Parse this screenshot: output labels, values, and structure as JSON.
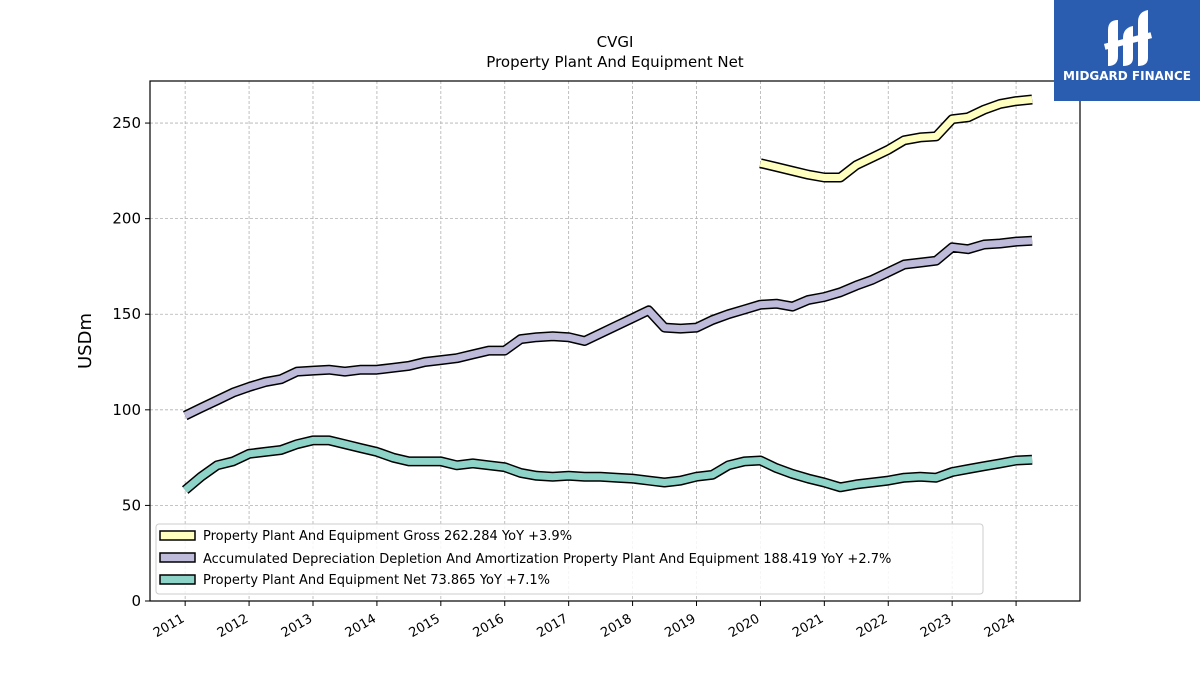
{
  "chart_data": {
    "type": "line",
    "title": "CVGI",
    "subtitle": "Property Plant And Equipment Net",
    "ylabel": "USDm",
    "xlabel": "",
    "ylim": [
      0,
      272
    ],
    "xlim": [
      2010.45,
      2025.0
    ],
    "yticks": [
      0,
      50,
      100,
      150,
      200,
      250
    ],
    "xticks": [
      "2011",
      "2012",
      "2013",
      "2014",
      "2015",
      "2016",
      "2017",
      "2018",
      "2019",
      "2020",
      "2021",
      "2022",
      "2023",
      "2024"
    ],
    "grid": true,
    "legend_position": "lower-left",
    "series": [
      {
        "name": "Property Plant And Equipment Gross",
        "legend": "Property Plant And Equipment Gross  262.284 YoY +3.9%",
        "color": "#ffffbf",
        "x": [
          2020.0,
          2020.25,
          2020.5,
          2020.75,
          2021.0,
          2021.25,
          2021.5,
          2021.75,
          2022.0,
          2022.25,
          2022.5,
          2022.75,
          2023.0,
          2023.25,
          2023.5,
          2023.75,
          2024.0,
          2024.25
        ],
        "y": [
          229,
          227,
          225,
          223,
          221.5,
          221.5,
          228,
          232,
          236,
          241,
          242.5,
          243,
          252,
          253,
          257,
          260,
          261.5,
          262.3
        ]
      },
      {
        "name": "Accumulated Depreciation Depletion And Amortization Property Plant And Equipment",
        "legend": "Accumulated Depreciation Depletion And Amortization Property Plant And Equipment  188.419 YoY +2.7%",
        "color": "#bebada",
        "x": [
          2011.0,
          2011.25,
          2011.5,
          2011.75,
          2012.0,
          2012.25,
          2012.5,
          2012.75,
          2013.0,
          2013.25,
          2013.5,
          2013.75,
          2014.0,
          2014.25,
          2014.5,
          2014.75,
          2015.0,
          2015.25,
          2015.5,
          2015.75,
          2016.0,
          2016.25,
          2016.5,
          2016.75,
          2017.0,
          2017.25,
          2017.5,
          2017.75,
          2018.0,
          2018.25,
          2018.5,
          2018.75,
          2019.0,
          2019.25,
          2019.5,
          2019.75,
          2020.0,
          2020.25,
          2020.5,
          2020.75,
          2021.0,
          2021.25,
          2021.5,
          2021.75,
          2022.0,
          2022.25,
          2022.5,
          2022.75,
          2023.0,
          2023.25,
          2023.5,
          2023.75,
          2024.0,
          2024.25
        ],
        "y": [
          97,
          101,
          105,
          109,
          112,
          114.5,
          116,
          120,
          120.5,
          121,
          120,
          121,
          121,
          122,
          123,
          125,
          126,
          127,
          129,
          131,
          131,
          137,
          138,
          138.5,
          138,
          136,
          140,
          144,
          148,
          152,
          143,
          142.5,
          143,
          147,
          150,
          152.5,
          155,
          155.5,
          154,
          157.5,
          159,
          161.5,
          165,
          168,
          172,
          176,
          177,
          178,
          185,
          184,
          186.5,
          187,
          188,
          188.4
        ]
      },
      {
        "name": "Property Plant And Equipment Net",
        "legend": "Property Plant And Equipment Net  73.865 YoY +7.1%",
        "color": "#8dd3c7",
        "x": [
          2011.0,
          2011.25,
          2011.5,
          2011.75,
          2012.0,
          2012.25,
          2012.5,
          2012.75,
          2013.0,
          2013.25,
          2013.5,
          2013.75,
          2014.0,
          2014.25,
          2014.5,
          2014.75,
          2015.0,
          2015.25,
          2015.5,
          2015.75,
          2016.0,
          2016.25,
          2016.5,
          2016.75,
          2017.0,
          2017.25,
          2017.5,
          2017.75,
          2018.0,
          2018.25,
          2018.5,
          2018.75,
          2019.0,
          2019.25,
          2019.5,
          2019.75,
          2020.0,
          2020.25,
          2020.5,
          2020.75,
          2021.0,
          2021.25,
          2021.5,
          2021.75,
          2022.0,
          2022.25,
          2022.5,
          2022.75,
          2023.0,
          2023.25,
          2023.5,
          2023.75,
          2024.0,
          2024.25
        ],
        "y": [
          58,
          65,
          71,
          73,
          77,
          78,
          79,
          82,
          84,
          84,
          82,
          80,
          78,
          75,
          73,
          73,
          73,
          71,
          72,
          71,
          70,
          67,
          65.5,
          65,
          65.5,
          65,
          65,
          64.5,
          64,
          63,
          62,
          63,
          65,
          66,
          71,
          73,
          73.5,
          69.5,
          66.5,
          64,
          62,
          59.5,
          61,
          62,
          63,
          64.5,
          65,
          64.5,
          67.5,
          69,
          70.5,
          72,
          73.5,
          73.9
        ]
      }
    ]
  },
  "brand": {
    "name": "MIDGARD FINANCE",
    "logo_icon": "midgard-logo-icon",
    "color": "#2a5db0"
  }
}
